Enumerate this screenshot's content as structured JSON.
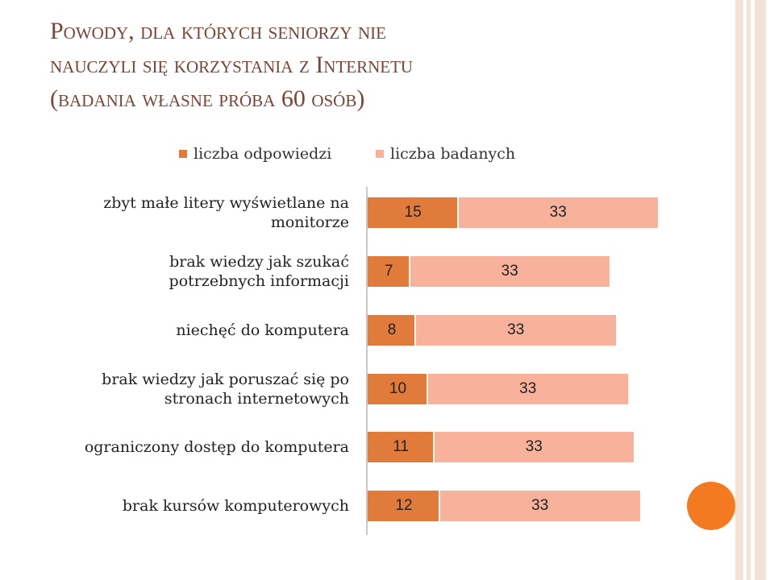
{
  "title_lines": [
    "Powody, dla których seniorzy nie",
    "nauczyli się korzystania z Internetu",
    "(badania własne próba 60 osób)"
  ],
  "colors": {
    "title": "#7a4437",
    "series1": "#e07b3b",
    "series2": "#f8b19a",
    "accent_circle": "#f47a22",
    "stripe": "#f3e2d6"
  },
  "chart_data": {
    "type": "bar",
    "orientation": "horizontal",
    "stacked": true,
    "legend_position": "top",
    "categories": [
      "zbyt małe litery wyświetlane na monitorze",
      "brak wiedzy jak szukać potrzebnych informacji",
      "niechęć do komputera",
      "brak wiedzy jak poruszać się po stronach internetowych",
      "ograniczony dostęp do komputera",
      "brak kursów komputerowych"
    ],
    "category_label_lines": [
      [
        "zbyt małe litery wyświetlane na",
        "monitorze"
      ],
      [
        "brak wiedzy jak szukać",
        "potrzebnych informacji"
      ],
      [
        "niechęć do komputera"
      ],
      [
        "brak wiedzy jak poruszać się po",
        "stronach internetowych"
      ],
      [
        "ograniczony dostęp do komputera"
      ],
      [
        "brak kursów komputerowych"
      ]
    ],
    "series": [
      {
        "name": "liczba odpowiedzi",
        "values": [
          15,
          7,
          8,
          10,
          11,
          12
        ]
      },
      {
        "name": "liczba badanych",
        "values": [
          33,
          33,
          33,
          33,
          33,
          33
        ]
      }
    ],
    "xlim": [
      0,
      48
    ],
    "grid": false
  }
}
